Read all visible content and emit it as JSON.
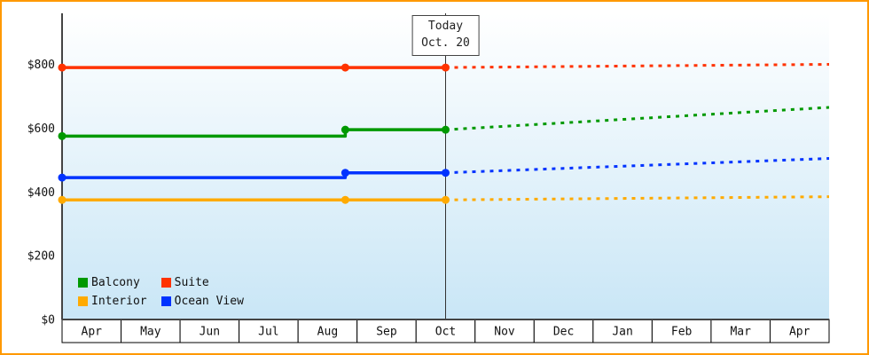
{
  "chart_data": {
    "type": "line",
    "x_categories": [
      "Apr",
      "May",
      "Jun",
      "Jul",
      "Aug",
      "Sep",
      "Oct",
      "Nov",
      "Dec",
      "Jan",
      "Feb",
      "Mar",
      "Apr"
    ],
    "x_range": [
      0,
      13
    ],
    "y_axis": {
      "max": 960,
      "ticks": [
        {
          "label": "$0",
          "value": 0
        },
        {
          "label": "$200",
          "value": 200
        },
        {
          "label": "$400",
          "value": 400
        },
        {
          "label": "$600",
          "value": 600
        },
        {
          "label": "$800",
          "value": 800
        }
      ]
    },
    "today": {
      "title": "Today",
      "date": "Oct. 20",
      "x": 6.5
    },
    "series": [
      {
        "name": "Interior",
        "color": "#ffaa00",
        "history": [
          [
            0,
            375
          ],
          [
            6.5,
            375
          ]
        ],
        "markers": [
          [
            0,
            375
          ],
          [
            4.8,
            375
          ],
          [
            6.5,
            375
          ]
        ],
        "forecast": [
          [
            6.5,
            375
          ],
          [
            13,
            385
          ]
        ]
      },
      {
        "name": "Ocean View",
        "color": "#0033ff",
        "history": [
          [
            0,
            445
          ],
          [
            4.8,
            445
          ],
          [
            4.8,
            460
          ],
          [
            6.5,
            460
          ]
        ],
        "markers": [
          [
            0,
            445
          ],
          [
            4.8,
            460
          ],
          [
            6.5,
            460
          ]
        ],
        "forecast": [
          [
            6.5,
            460
          ],
          [
            13,
            505
          ]
        ]
      },
      {
        "name": "Balcony",
        "color": "#009900",
        "history": [
          [
            0,
            575
          ],
          [
            4.8,
            575
          ],
          [
            4.8,
            595
          ],
          [
            6.5,
            595
          ]
        ],
        "markers": [
          [
            0,
            575
          ],
          [
            4.8,
            595
          ],
          [
            6.5,
            595
          ]
        ],
        "forecast": [
          [
            6.5,
            595
          ],
          [
            13,
            665
          ]
        ]
      },
      {
        "name": "Suite",
        "color": "#ff3300",
        "history": [
          [
            0,
            790
          ],
          [
            6.5,
            790
          ]
        ],
        "markers": [
          [
            0,
            790
          ],
          [
            4.8,
            790
          ],
          [
            6.5,
            790
          ]
        ],
        "forecast": [
          [
            6.5,
            790
          ],
          [
            13,
            800
          ]
        ]
      }
    ],
    "legend": [
      {
        "label": "Balcony",
        "color": "#009900"
      },
      {
        "label": "Suite",
        "color": "#ff3300"
      },
      {
        "label": "Interior",
        "color": "#ffaa00"
      },
      {
        "label": "Ocean View",
        "color": "#0033ff"
      }
    ],
    "colors": {
      "frame_border": "#ff9900",
      "plot_bg_top": "#ffffff",
      "plot_bg_bottom": "#c9e6f6",
      "axis": "#444444",
      "today_line": "#333333",
      "month_cell_bg": "#ffffff",
      "month_cell_border": "#000000",
      "label_text": "#111111"
    }
  }
}
